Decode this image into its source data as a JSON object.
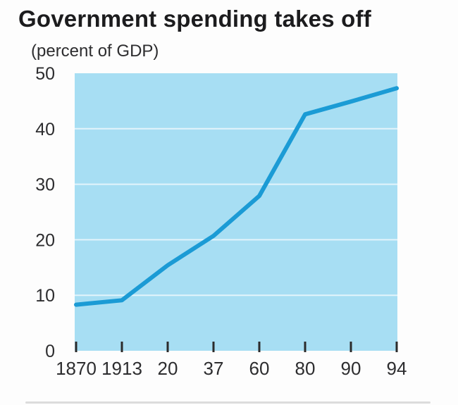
{
  "chart_data": {
    "type": "line",
    "title": "Government spending takes off",
    "subtitle": "(percent of GDP)",
    "categories": [
      "1870",
      "1913",
      "20",
      "37",
      "60",
      "80",
      "90",
      "94"
    ],
    "values": [
      8.3,
      9.1,
      15.4,
      20.7,
      27.9,
      42.6,
      44.9,
      47.3
    ],
    "series_name": "Government spending (percent of GDP)",
    "ylim": [
      0,
      50
    ],
    "y_ticks": [
      50,
      40,
      30,
      20,
      10,
      0
    ],
    "grid_values": [
      40,
      30,
      20,
      10
    ],
    "grid": "on",
    "legend_position": "none",
    "xlabel": "",
    "ylabel": "percent of GDP",
    "colors": {
      "line": "#1b9bd5",
      "plot_background": "#a7def3",
      "gridline": "#e3f4fb",
      "title_text": "#1c1c1e",
      "axis_text": "#2d2d2f",
      "tick_mark": "#2b2b2b",
      "page_background": "#fdfdfd"
    }
  }
}
